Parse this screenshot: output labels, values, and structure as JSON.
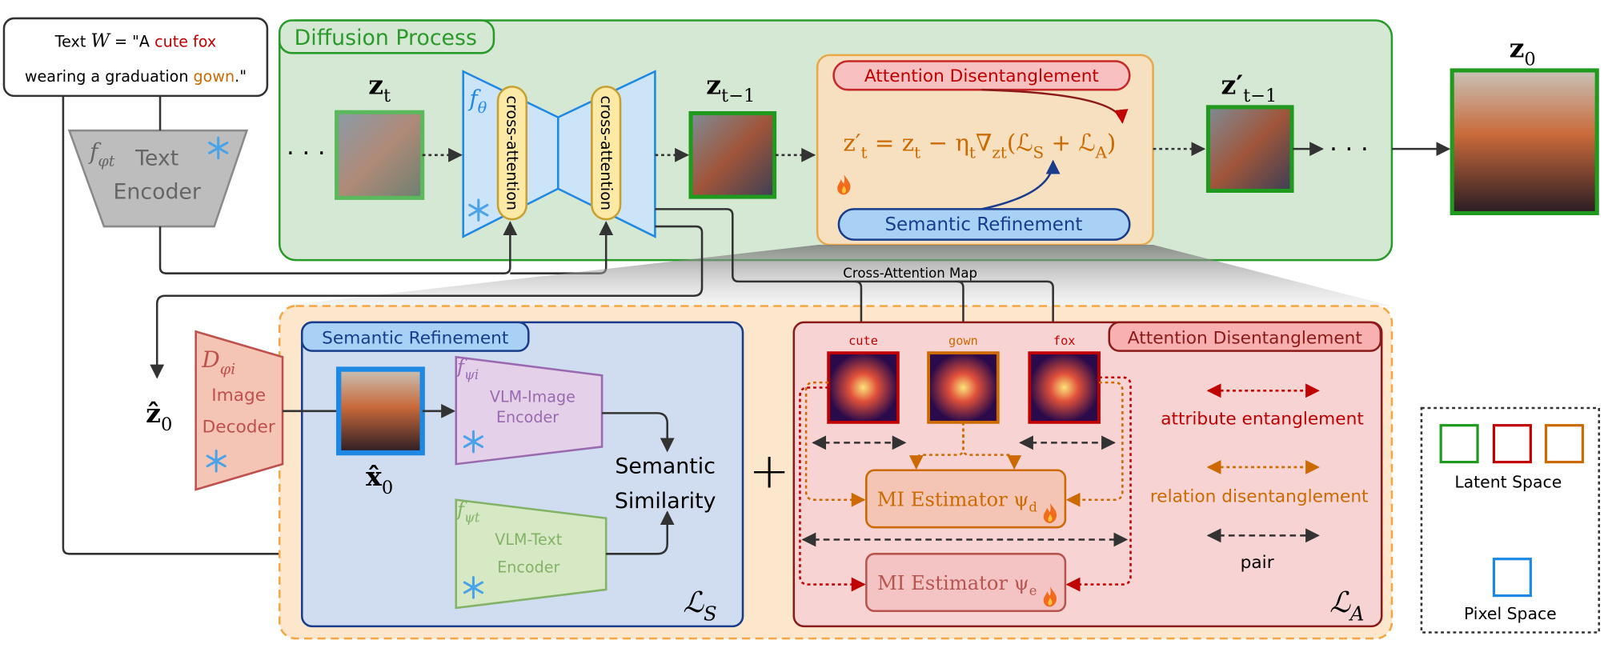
{
  "prompt": {
    "line1": [
      "Text ",
      "W",
      " = \"A ",
      "cute fox"
    ],
    "line2": [
      "wearing a graduation ",
      "gown",
      ".\""
    ]
  },
  "text_encoder": {
    "symbol": [
      {
        "t": "f"
      },
      {
        "s": "φt"
      }
    ],
    "line1": "Text",
    "line2": "Encoder"
  },
  "diffusion": {
    "title": "Diffusion Process",
    "dots_left": "· · ·",
    "dots_right": "· · ·",
    "z_t": [
      {
        "t": "z"
      },
      {
        "s": "t"
      }
    ],
    "z_t_minus_1": [
      {
        "t": "z"
      },
      {
        "s": "t−1"
      }
    ],
    "z_t_minus_1_prime": [
      {
        "t": "z′"
      },
      {
        "s": "t−1"
      }
    ],
    "z_0": [
      {
        "t": "z"
      },
      {
        "s": "0"
      }
    ],
    "unet_symbol": [
      {
        "t": "f"
      },
      {
        "s": "θ"
      }
    ],
    "cross_attention_1": "cross-attention",
    "cross_attention_2": "cross-attention",
    "attention_disentanglement": "Attention Disentanglement",
    "semantic_refinement": "Semantic Refinement",
    "update_formula": [
      {
        "t": "z′"
      },
      {
        "s": "t"
      },
      {
        "t": " = z"
      },
      {
        "s": "t"
      },
      {
        "t": " − η"
      },
      {
        "s": "t"
      },
      {
        "t": "∇"
      },
      {
        "s": "zt"
      },
      {
        "t": "(ℒ"
      },
      {
        "s": "S"
      },
      {
        "t": " + ℒ"
      },
      {
        "s": "A"
      },
      {
        "t": ")"
      }
    ]
  },
  "cross_attention_map": "Cross-Attention Map",
  "decoder": {
    "z_hat_0": [
      {
        "t": "ẑ"
      },
      {
        "s": "0"
      }
    ],
    "symbol": [
      {
        "t": "D"
      },
      {
        "s": "φi"
      }
    ],
    "line1": "Image",
    "line2": "Decoder"
  },
  "semantic_refinement": {
    "title": "Semantic Refinement",
    "x_hat_0": [
      {
        "t": "x̂"
      },
      {
        "s": "0"
      }
    ],
    "image_encoder": {
      "symbol": [
        {
          "t": "f"
        },
        {
          "s": "ψi"
        }
      ],
      "line1": "VLM-Image",
      "line2": "Encoder"
    },
    "text_encoder": {
      "symbol": [
        {
          "t": "f"
        },
        {
          "s": "ψt"
        }
      ],
      "line1": "VLM-Text",
      "line2": "Encoder"
    },
    "similarity": [
      "Semantic",
      "Similarity"
    ],
    "loss": [
      {
        "t": "ℒ"
      },
      {
        "s": "S"
      }
    ]
  },
  "plus": "+",
  "attention_disentanglement": {
    "title": "Attention Disentanglement",
    "maps": [
      "cute",
      "gown",
      "fox"
    ],
    "estimator_d": [
      {
        "t": "MI Estimator ψ"
      },
      {
        "s": "d"
      }
    ],
    "estimator_e": [
      {
        "t": "MI Estimator ψ"
      },
      {
        "s": "e"
      }
    ],
    "legend": [
      "attribute entanglement",
      "relation disentanglement",
      "pair"
    ],
    "loss": [
      {
        "t": "ℒ"
      },
      {
        "s": "A"
      }
    ]
  },
  "space_legend": {
    "latent": "Latent Space",
    "pixel": "Pixel Space"
  }
}
